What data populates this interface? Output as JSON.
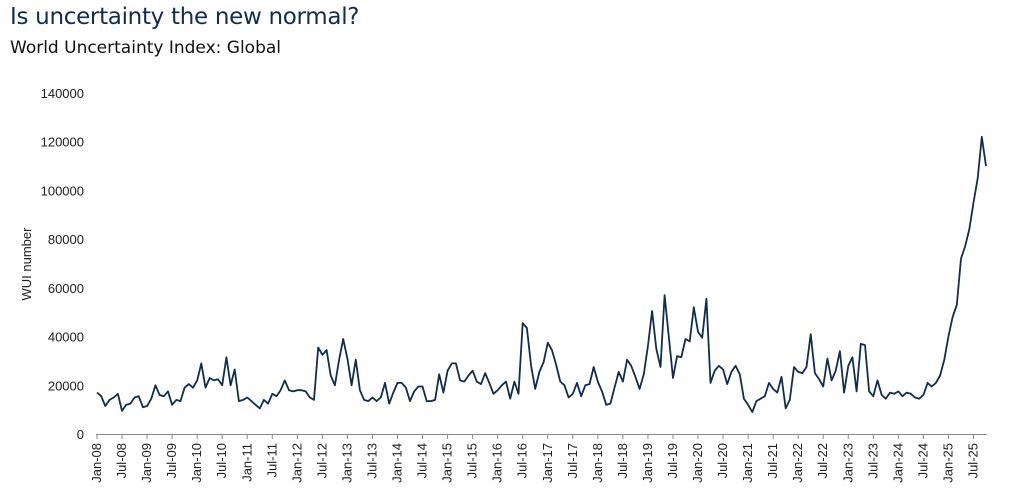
{
  "header": {
    "title": "Is uncertainty the new normal?",
    "subtitle": "World Uncertainty Index: Global"
  },
  "colors": {
    "line": "#0f2d52",
    "axis": "#888888",
    "title": "#0f2d52"
  },
  "chart_data": {
    "type": "line",
    "title": "Is uncertainty the new normal?",
    "subtitle": "World Uncertainty Index: Global",
    "ylabel": "WUI number",
    "xlabel": "",
    "ylim": [
      0,
      140000
    ],
    "yticks": [
      0,
      20000,
      40000,
      60000,
      80000,
      100000,
      120000,
      140000
    ],
    "ytick_labels": [
      "0",
      "20000",
      "40000",
      "60000",
      "80000",
      "100000",
      "120000",
      "140000"
    ],
    "xtick_labels": [
      "Jan-08",
      "Jul-08",
      "Jan-09",
      "Jul-09",
      "Jan-10",
      "Jul-10",
      "Jan-11",
      "Jul-11",
      "Jan-12",
      "Jul-12",
      "Jan-13",
      "Jul-13",
      "Jan-14",
      "Jul-14",
      "Jan-15",
      "Jul-15",
      "Jan-16",
      "Jul-16",
      "Jan-17",
      "Jul-17",
      "Jan-18",
      "Jul-18",
      "Jan-19",
      "Jul-19",
      "Jan-20",
      "Jul-20",
      "Jan-21",
      "Jul-21",
      "Jan-22",
      "Jul-22",
      "Jan-23",
      "Jul-23",
      "Jan-24",
      "Jul-24",
      "Jan-25",
      "Jul-25"
    ],
    "grid": false,
    "legend": "none",
    "x_start": "Jan-08",
    "x_frequency": "monthly",
    "series": [
      {
        "values": [
          17000,
          15500,
          11500,
          14000,
          15000,
          16500,
          9500,
          12000,
          12500,
          15000,
          15500,
          11000,
          11500,
          14500,
          20000,
          16000,
          15500,
          17500,
          12000,
          14000,
          13500,
          19000,
          20500,
          19000,
          22000,
          29000,
          19000,
          23000,
          22000,
          22500,
          20000,
          31500,
          20000,
          26500,
          13500,
          14000,
          15000,
          13500,
          12000,
          10500,
          14000,
          12500,
          16500,
          15500,
          18000,
          22000,
          18000,
          17500,
          18000,
          18000,
          17500,
          15000,
          14000,
          35500,
          32500,
          34500,
          24000,
          20000,
          30500,
          39000,
          31000,
          20000,
          30500,
          18000,
          14000,
          13500,
          15000,
          13500,
          15000,
          21000,
          12500,
          17000,
          21000,
          21000,
          19000,
          13500,
          17500,
          19500,
          19500,
          13500,
          13500,
          14000,
          24500,
          17000,
          26000,
          29000,
          29000,
          22000,
          21500,
          24000,
          26000,
          21500,
          20500,
          25000,
          21000,
          16500,
          18000,
          20000,
          21500,
          14500,
          21500,
          16500,
          45500,
          43500,
          28000,
          18500,
          25500,
          29500,
          37500,
          34500,
          28500,
          21500,
          20000,
          15000,
          16500,
          21000,
          15500,
          20000,
          20500,
          27500,
          21500,
          17500,
          12000,
          12500,
          19000,
          25500,
          21500,
          30500,
          28000,
          23500,
          18500,
          24500,
          36000,
          50500,
          35000,
          27500,
          57000,
          40000,
          23000,
          32000,
          31500,
          39000,
          38000,
          52000,
          42000,
          39500,
          55500,
          21000,
          26000,
          28000,
          26500,
          20500,
          25500,
          28000,
          24500,
          14500,
          12000,
          9000,
          13500,
          14500,
          15500,
          21000,
          18500,
          17000,
          23500,
          10500,
          14000,
          27500,
          25500,
          25000,
          27500,
          41000,
          25000,
          22500,
          19500,
          31000,
          22000,
          26000,
          34000,
          17000,
          28000,
          31500,
          17500,
          37000,
          36500,
          17500,
          15500,
          22000,
          16000,
          14500,
          17000,
          16500,
          17500,
          15500,
          17000,
          16500,
          15000,
          14500,
          16000,
          21000,
          19500,
          21000,
          24000,
          30500,
          40000,
          48000,
          53000,
          72000,
          77000,
          84000,
          95000,
          105000,
          122000,
          110000
        ]
      }
    ]
  }
}
